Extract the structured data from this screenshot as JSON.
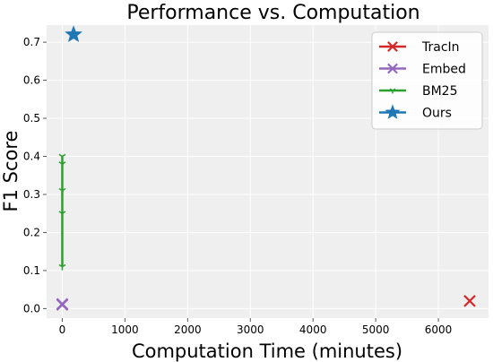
{
  "chart_data": {
    "type": "scatter",
    "title": "Performance vs. Computation",
    "xlabel": "Computation Time (minutes)",
    "ylabel": "F1 Score",
    "xlim": [
      -250,
      6800
    ],
    "ylim": [
      -0.025,
      0.745
    ],
    "x_ticks": [
      0,
      1000,
      2000,
      3000,
      4000,
      5000,
      6000
    ],
    "y_ticks": [
      0.0,
      0.1,
      0.2,
      0.3,
      0.4,
      0.5,
      0.6,
      0.7
    ],
    "grid": true,
    "legend_position": "top-right",
    "series": [
      {
        "name": "TracIn",
        "color": "#d62728",
        "marker": "x",
        "points": [
          [
            6500,
            0.02
          ]
        ]
      },
      {
        "name": "Embed",
        "color": "#9467bd",
        "marker": "x",
        "points": [
          [
            0,
            0.01
          ],
          [
            0,
            0.012
          ]
        ]
      },
      {
        "name": "BM25",
        "color": "#2ca02c",
        "marker": "tri_down",
        "points": [
          [
            0,
            0.11
          ],
          [
            0,
            0.25
          ],
          [
            0,
            0.31
          ],
          [
            0,
            0.38
          ],
          [
            0,
            0.4
          ]
        ]
      },
      {
        "name": "Ours",
        "color": "#1f77b4",
        "marker": "star",
        "points": [
          [
            180,
            0.72
          ]
        ]
      }
    ]
  }
}
